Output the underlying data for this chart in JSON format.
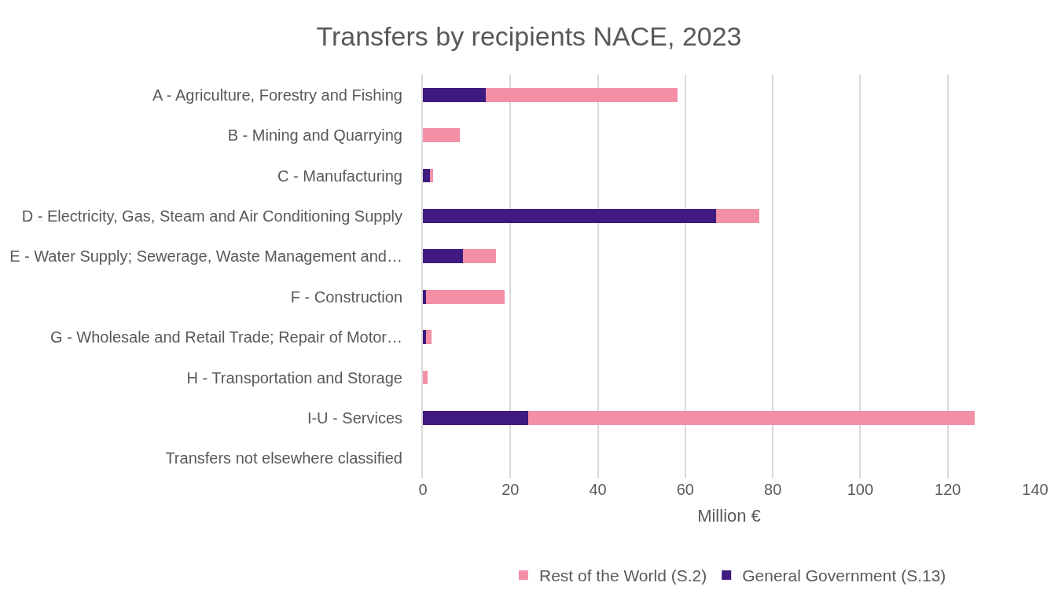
{
  "chart_data": {
    "type": "bar",
    "title": "Transfers by recipients NACE, 2023",
    "xlabel": "Million €",
    "orientation": "horizontal",
    "stacked": true,
    "categories": [
      "A - Agriculture, Forestry and Fishing",
      "B - Mining and Quarrying",
      "C - Manufacturing",
      "D - Electricity, Gas, Steam and Air Conditioning Supply",
      "E - Water Supply; Sewerage, Waste Management and…",
      "F - Construction",
      "G - Wholesale and Retail Trade; Repair of Motor…",
      "H - Transportation and Storage",
      "I-U - Services",
      "Transfers not elsewhere classified"
    ],
    "series": [
      {
        "name": "General Government (S.13)",
        "color": "#3f1a80",
        "values": [
          14.3,
          null,
          1.6,
          67,
          9.1,
          0.8,
          0.8,
          null,
          24,
          null
        ]
      },
      {
        "name": "Rest of the World (S.2)",
        "color": "#f48fa8",
        "values": [
          44,
          8.5,
          0.8,
          10,
          7.7,
          17.8,
          1.2,
          1.0,
          102.2,
          null
        ]
      }
    ],
    "xlim": [
      0,
      140
    ],
    "xticks": [
      0,
      20,
      40,
      60,
      80,
      100,
      120,
      140
    ],
    "grid": "x",
    "legend": "bottom"
  }
}
